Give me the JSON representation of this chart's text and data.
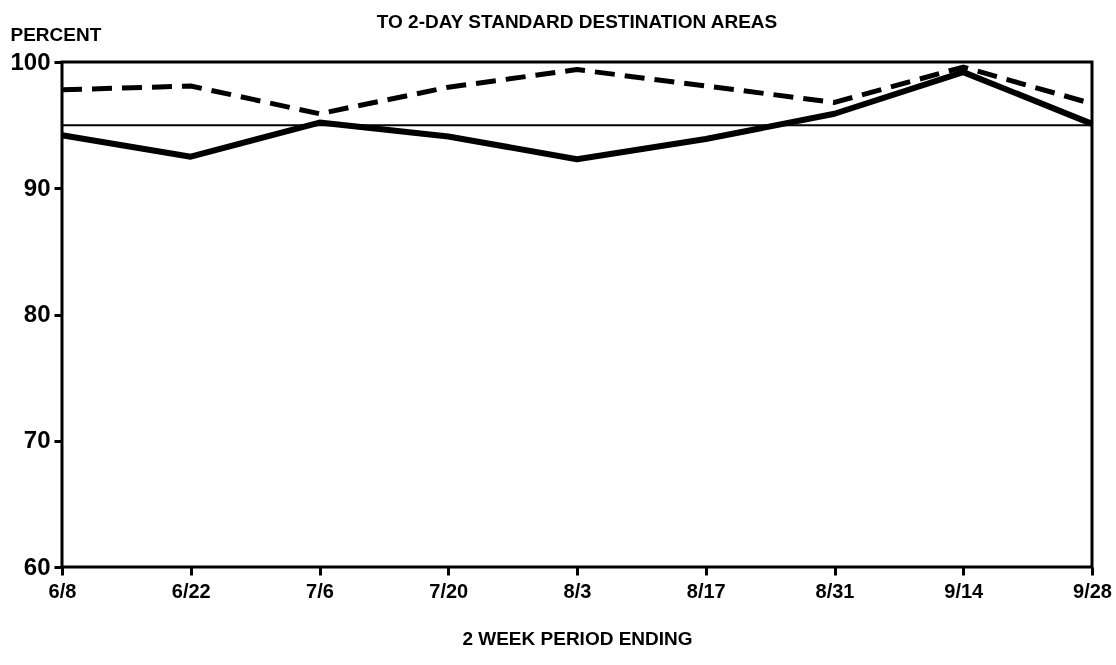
{
  "chart_data": {
    "type": "line",
    "title": "TO 2-DAY STANDARD DESTINATION AREAS",
    "ylabel": "PERCENT",
    "xlabel": "2 WEEK PERIOD ENDING",
    "categories": [
      "6/8",
      "6/22",
      "7/6",
      "7/20",
      "8/3",
      "8/17",
      "8/31",
      "9/14",
      "9/28"
    ],
    "series": [
      {
        "color": "#000000",
        "line_style": "solid",
        "values": [
          94.2,
          92.5,
          95.2,
          94.1,
          92.3,
          93.9,
          95.9,
          99.2,
          95.1
        ]
      },
      {
        "color": "#000000",
        "line_style": "dashed",
        "values": [
          97.8,
          98.1,
          95.9,
          98.0,
          99.4,
          98.1,
          96.8,
          99.6,
          96.7
        ]
      }
    ],
    "ylim": [
      60,
      100
    ],
    "yticks": [
      60,
      70,
      80,
      90,
      100
    ],
    "ref_lines": [
      {
        "axis": "y",
        "value": 95
      }
    ],
    "grid": false,
    "legend": false,
    "marker": "none"
  }
}
